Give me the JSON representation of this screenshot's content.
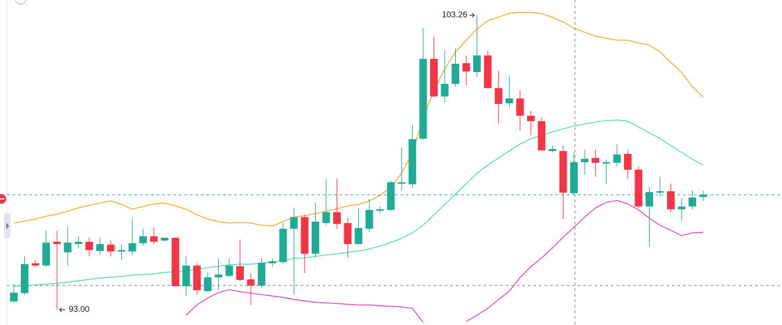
{
  "chart_data": {
    "type": "candlestick",
    "ylim": [
      92.47,
      103.79
    ],
    "up_color": "#22ab94",
    "down_color": "#f23645",
    "open": [
      93.29,
      93.58,
      94.62,
      94.54,
      95.37,
      95.0,
      95.29,
      95.37,
      95.05,
      95.27,
      95.03,
      95.03,
      95.32,
      95.56,
      95.41,
      95.51,
      93.82,
      94.54,
      93.65,
      94.13,
      94.18,
      94.52,
      94.06,
      93.84,
      94.62,
      94.66,
      95.82,
      96.23,
      94.95,
      96.02,
      96.4,
      96.02,
      95.29,
      95.82,
      96.45,
      96.48,
      97.39,
      97.37,
      98.96,
      101.74,
      100.43,
      100.87,
      101.59,
      101.28,
      101.86,
      100.72,
      100.19,
      100.36,
      99.76,
      99.57,
      98.53,
      98.53,
      97.06,
      98.14,
      98.29,
      98.09,
      98.12,
      98.43,
      97.88,
      96.6,
      97.08,
      97.13,
      96.5,
      96.6,
      96.93
    ],
    "high": [
      93.89,
      94.86,
      94.74,
      95.75,
      95.75,
      95.9,
      95.58,
      95.51,
      95.51,
      95.41,
      95.27,
      96.19,
      95.82,
      95.87,
      95.51,
      95.51,
      94.86,
      94.62,
      94.3,
      94.79,
      94.79,
      95.44,
      94.25,
      94.79,
      94.79,
      96.02,
      96.55,
      96.31,
      96.74,
      97.56,
      97.56,
      96.19,
      96.55,
      96.86,
      96.6,
      97.51,
      98.65,
      99.45,
      102.82,
      102.51,
      102.03,
      102.1,
      101.86,
      103.26,
      102.03,
      101.33,
      101.14,
      100.65,
      99.93,
      99.69,
      98.72,
      98.72,
      98.48,
      98.58,
      98.58,
      98.24,
      98.77,
      98.58,
      98.0,
      97.27,
      97.63,
      97.39,
      96.89,
      97.15,
      97.15
    ],
    "low": [
      93.24,
      93.53,
      94.5,
      94.5,
      93.0,
      94.54,
      95.15,
      94.86,
      94.91,
      94.86,
      94.74,
      94.91,
      95.22,
      95.29,
      95.37,
      93.82,
      93.48,
      93.53,
      93.63,
      93.7,
      94.13,
      93.99,
      93.17,
      93.77,
      94.5,
      94.59,
      93.53,
      94.28,
      94.81,
      95.92,
      95.82,
      94.81,
      95.27,
      95.7,
      96.38,
      96.43,
      97.15,
      97.25,
      98.91,
      100.41,
      100.24,
      100.77,
      100.82,
      101.11,
      100.72,
      99.49,
      100.05,
      99.25,
      99.08,
      98.55,
      98.48,
      96.16,
      97.01,
      97.71,
      97.63,
      97.39,
      98.0,
      97.56,
      96.55,
      95.2,
      96.96,
      96.4,
      96.09,
      96.5,
      96.79
    ],
    "close": [
      93.6,
      94.59,
      94.54,
      95.34,
      95.29,
      95.34,
      95.37,
      95.08,
      95.29,
      95.03,
      95.08,
      95.32,
      95.56,
      95.37,
      95.51,
      93.82,
      94.54,
      93.68,
      94.13,
      94.23,
      94.54,
      94.04,
      93.84,
      94.64,
      94.69,
      95.82,
      96.23,
      94.95,
      96.07,
      96.4,
      95.99,
      95.29,
      95.85,
      96.48,
      96.5,
      97.44,
      97.44,
      98.94,
      101.74,
      100.43,
      100.87,
      101.57,
      101.3,
      101.86,
      100.72,
      100.17,
      100.36,
      99.76,
      99.57,
      98.55,
      98.6,
      97.08,
      98.14,
      98.26,
      98.12,
      98.14,
      98.41,
      97.88,
      96.6,
      97.1,
      97.13,
      96.5,
      96.6,
      96.91,
      97.01
    ],
    "series": [
      {
        "color": "#f5a623",
        "values": [
          96.02,
          96.09,
          96.16,
          96.26,
          96.33,
          96.43,
          96.55,
          96.64,
          96.72,
          96.79,
          96.67,
          96.5,
          96.6,
          96.69,
          96.72,
          96.62,
          96.5,
          96.31,
          96.16,
          96.07,
          96.02,
          96.04,
          96.02,
          95.94,
          95.92,
          96.07,
          96.23,
          96.28,
          96.35,
          96.43,
          96.52,
          96.62,
          96.67,
          96.79,
          96.98,
          97.27,
          97.75,
          98.48,
          99.69,
          100.65,
          101.38,
          101.98,
          102.39,
          102.78,
          103.07,
          103.19,
          103.33,
          103.36,
          103.36,
          103.31,
          103.19,
          103.02,
          102.82,
          102.66,
          102.53,
          102.46,
          102.39,
          102.39,
          102.29,
          102.22,
          101.98,
          101.62,
          101.26,
          100.77,
          100.41
        ]
      },
      {
        "color": "#4dd9b9",
        "values": [
          93.82,
          93.84,
          93.87,
          93.89,
          93.92,
          93.96,
          94.01,
          94.06,
          94.11,
          94.13,
          94.16,
          94.21,
          94.23,
          94.25,
          94.3,
          94.33,
          94.35,
          94.4,
          94.47,
          94.52,
          94.57,
          94.59,
          94.59,
          94.62,
          94.66,
          94.71,
          94.79,
          94.81,
          94.86,
          94.91,
          94.95,
          95.0,
          95.05,
          95.12,
          95.22,
          95.34,
          95.49,
          95.68,
          95.94,
          96.31,
          96.67,
          97.03,
          97.39,
          97.75,
          98.04,
          98.29,
          98.53,
          98.77,
          98.96,
          99.08,
          99.2,
          99.3,
          99.4,
          99.47,
          99.54,
          99.59,
          99.61,
          99.57,
          99.37,
          99.16,
          98.96,
          98.72,
          98.48,
          98.24,
          98.04
        ]
      },
      {
        "color": "#e040b8",
        "values": [
          null,
          null,
          null,
          null,
          null,
          null,
          null,
          null,
          null,
          null,
          null,
          null,
          null,
          null,
          null,
          null,
          92.81,
          93.17,
          93.41,
          93.6,
          93.7,
          93.63,
          93.58,
          93.53,
          93.48,
          93.43,
          93.36,
          93.31,
          93.26,
          93.24,
          93.22,
          93.19,
          93.17,
          93.17,
          93.14,
          93.12,
          93.1,
          93.05,
          92.56,
          null,
          null,
          null,
          92.59,
          92.81,
          93.05,
          93.36,
          93.65,
          94.13,
          94.5,
          94.81,
          95.15,
          95.53,
          95.87,
          96.23,
          96.55,
          96.74,
          96.81,
          96.69,
          96.48,
          96.19,
          95.94,
          95.77,
          95.58,
          95.68,
          95.7
        ]
      }
    ],
    "annotations": [
      "103.26",
      "93.00"
    ]
  }
}
